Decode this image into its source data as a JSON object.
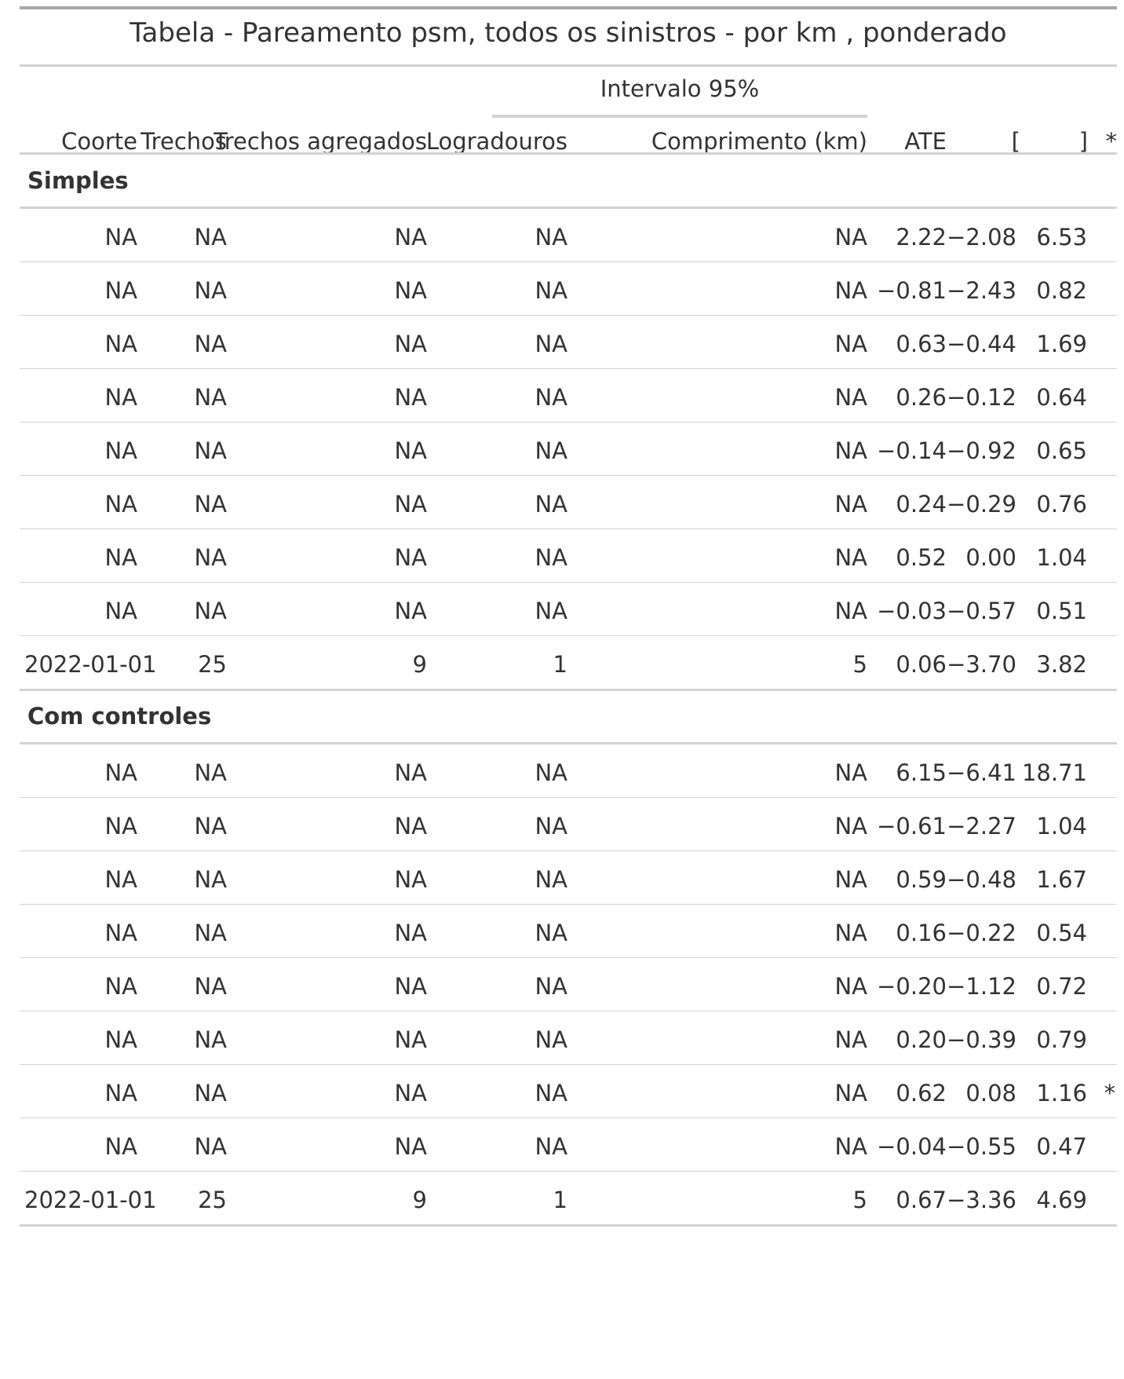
{
  "title": "Tabela - Pareamento psm, todos os sinistros - por km , ponderado",
  "spanner": "Intervalo 95%",
  "columns": {
    "coorte": "Coorte",
    "trechos": "Trechos",
    "trechos_agregados": "Trechos agregados",
    "logradouros": "Logradouros",
    "comprimento": "Comprimento (km)",
    "ate": "ATE",
    "lower": "[",
    "upper": "]",
    "sig": "*"
  },
  "groups": [
    {
      "label": "Simples",
      "rows": [
        [
          "NA",
          "NA",
          "NA",
          "NA",
          "NA",
          "2.22",
          "−2.08",
          "6.53",
          ""
        ],
        [
          "NA",
          "NA",
          "NA",
          "NA",
          "NA",
          "−0.81",
          "−2.43",
          "0.82",
          ""
        ],
        [
          "NA",
          "NA",
          "NA",
          "NA",
          "NA",
          "0.63",
          "−0.44",
          "1.69",
          ""
        ],
        [
          "NA",
          "NA",
          "NA",
          "NA",
          "NA",
          "0.26",
          "−0.12",
          "0.64",
          ""
        ],
        [
          "NA",
          "NA",
          "NA",
          "NA",
          "NA",
          "−0.14",
          "−0.92",
          "0.65",
          ""
        ],
        [
          "NA",
          "NA",
          "NA",
          "NA",
          "NA",
          "0.24",
          "−0.29",
          "0.76",
          ""
        ],
        [
          "NA",
          "NA",
          "NA",
          "NA",
          "NA",
          "0.52",
          "0.00",
          "1.04",
          ""
        ],
        [
          "NA",
          "NA",
          "NA",
          "NA",
          "NA",
          "−0.03",
          "−0.57",
          "0.51",
          ""
        ],
        [
          "2022-01-01",
          "25",
          "9",
          "1",
          "5",
          "0.06",
          "−3.70",
          "3.82",
          ""
        ]
      ]
    },
    {
      "label": "Com controles",
      "rows": [
        [
          "NA",
          "NA",
          "NA",
          "NA",
          "NA",
          "6.15",
          "−6.41",
          "18.71",
          ""
        ],
        [
          "NA",
          "NA",
          "NA",
          "NA",
          "NA",
          "−0.61",
          "−2.27",
          "1.04",
          ""
        ],
        [
          "NA",
          "NA",
          "NA",
          "NA",
          "NA",
          "0.59",
          "−0.48",
          "1.67",
          ""
        ],
        [
          "NA",
          "NA",
          "NA",
          "NA",
          "NA",
          "0.16",
          "−0.22",
          "0.54",
          ""
        ],
        [
          "NA",
          "NA",
          "NA",
          "NA",
          "NA",
          "−0.20",
          "−1.12",
          "0.72",
          ""
        ],
        [
          "NA",
          "NA",
          "NA",
          "NA",
          "NA",
          "0.20",
          "−0.39",
          "0.79",
          ""
        ],
        [
          "NA",
          "NA",
          "NA",
          "NA",
          "NA",
          "0.62",
          "0.08",
          "1.16",
          "*"
        ],
        [
          "NA",
          "NA",
          "NA",
          "NA",
          "NA",
          "−0.04",
          "−0.55",
          "0.47",
          ""
        ],
        [
          "2022-01-01",
          "25",
          "9",
          "1",
          "5",
          "0.67",
          "−3.36",
          "4.69",
          ""
        ]
      ]
    }
  ]
}
